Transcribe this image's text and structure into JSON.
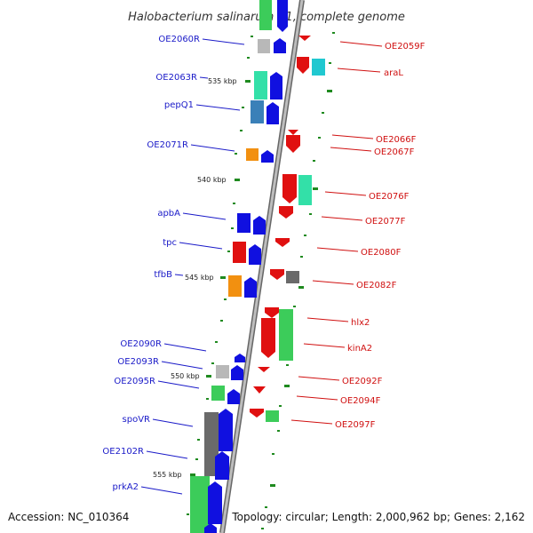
{
  "title": "Halobacterium salinarum R1, complete genome",
  "footer": {
    "accession": "Accession: NC_010364",
    "summary": "Topology: circular; Length: 2,000,962 bp; Genes: 2,162"
  },
  "colors": {
    "left_label": "#1a1ac8",
    "right_label": "#d01010",
    "backbone": "#8c8c8c",
    "tick": "#1f8a1f"
  },
  "scale_marks": [
    "535 kbp",
    "540 kbp",
    "545 kbp",
    "550 kbp",
    "555 kbp"
  ],
  "left_labels": [
    "OE2060R",
    "OE2063R",
    "pepQ1",
    "OE2071R",
    "apbA",
    "tpc",
    "tfbB",
    "OE2090R",
    "OE2093R",
    "OE2095R",
    "spoVR",
    "OE2102R",
    "prkA2"
  ],
  "right_labels": [
    "OE2059F",
    "araL",
    "OE2066F",
    "OE2067F",
    "OE2076F",
    "OE2077F",
    "OE2080F",
    "OE2082F",
    "hlx2",
    "kinA2",
    "OE2092F",
    "OE2094F",
    "OE2097F"
  ]
}
